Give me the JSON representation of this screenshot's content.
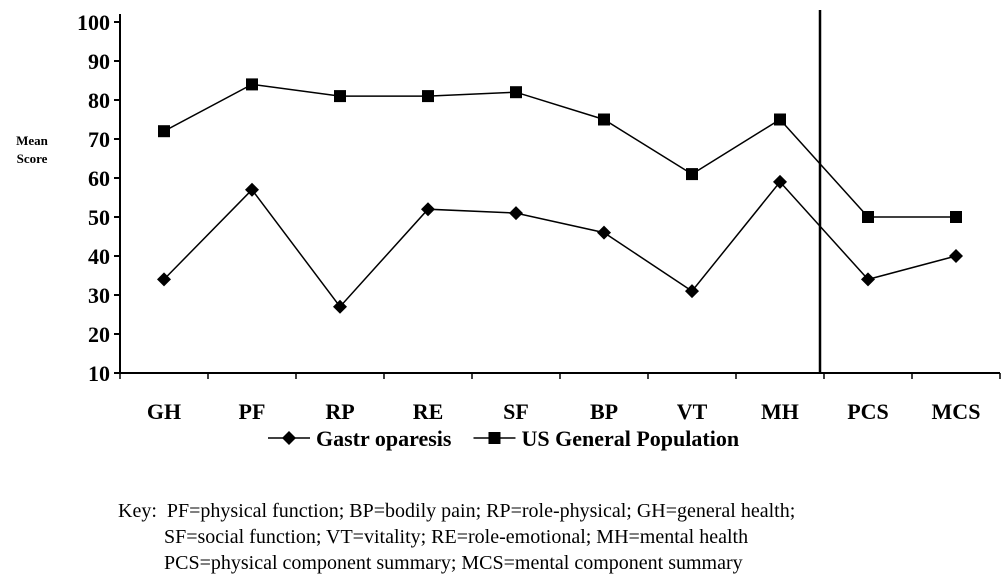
{
  "chart_data": {
    "type": "line",
    "categories": [
      "GH",
      "PF",
      "RP",
      "RE",
      "SF",
      "BP",
      "VT",
      "MH",
      "PCS",
      "MCS"
    ],
    "ylabel": [
      "Mean",
      "Score"
    ],
    "ylim": [
      10,
      100
    ],
    "yticks": [
      100,
      90,
      80,
      70,
      60,
      50,
      40,
      30,
      20,
      10
    ],
    "separator_after": "MH",
    "legend_placement": "bottom",
    "series": [
      {
        "name": "Gastr oparesis",
        "marker": "diamond",
        "color": "#000000",
        "values": [
          34,
          57,
          27,
          52,
          51,
          46,
          31,
          59,
          34,
          40
        ]
      },
      {
        "name": "US General Population",
        "marker": "square",
        "color": "#000000",
        "values": [
          72,
          84,
          81,
          81,
          82,
          75,
          61,
          75,
          50,
          50
        ]
      }
    ]
  },
  "key": {
    "prefix": "Key:",
    "line1": "PF=physical function; BP=bodily pain; RP=role-physical; GH=general health;",
    "line2": "SF=social function; VT=vitality; RE=role-emotional; MH=mental health",
    "line3": "PCS=physical component summary; MCS=mental component summary"
  }
}
